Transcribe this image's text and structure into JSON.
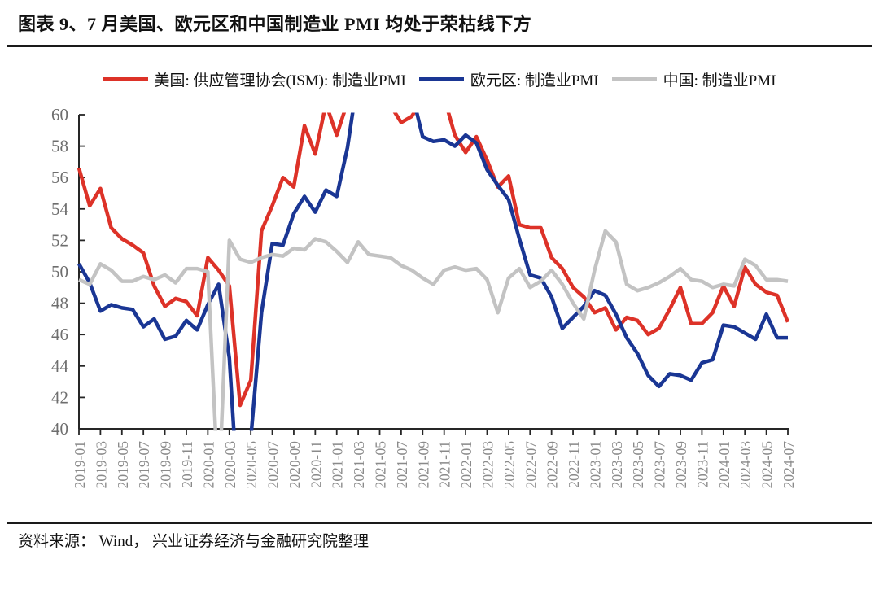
{
  "header": {
    "title": "图表 9、7 月美国、欧元区和中国制造业 PMI 均处于荣枯线下方"
  },
  "footer": {
    "source": "资料来源： Wind， 兴业证券经济与金融研究院整理"
  },
  "chart_data": {
    "type": "line",
    "title": "7 月美国、欧元区和中国制造业 PMI 均处于荣枯线下方",
    "legend_position": "top",
    "grid": false,
    "ylim": [
      40,
      60
    ],
    "ytick_step": 2,
    "x_tick_step": 2,
    "axis_color": "#262626",
    "y_tick_label_color": "#6e6e6e",
    "x_tick_label_color": "#8a8a8a",
    "x": [
      "2019-01",
      "2019-02",
      "2019-03",
      "2019-04",
      "2019-05",
      "2019-06",
      "2019-07",
      "2019-08",
      "2019-09",
      "2019-10",
      "2019-11",
      "2019-12",
      "2020-01",
      "2020-02",
      "2020-03",
      "2020-04",
      "2020-05",
      "2020-06",
      "2020-07",
      "2020-08",
      "2020-09",
      "2020-10",
      "2020-11",
      "2020-12",
      "2021-01",
      "2021-02",
      "2021-03",
      "2021-04",
      "2021-05",
      "2021-06",
      "2021-07",
      "2021-08",
      "2021-09",
      "2021-10",
      "2021-11",
      "2021-12",
      "2022-01",
      "2022-02",
      "2022-03",
      "2022-04",
      "2022-05",
      "2022-06",
      "2022-07",
      "2022-08",
      "2022-09",
      "2022-10",
      "2022-11",
      "2022-12",
      "2023-01",
      "2023-02",
      "2023-03",
      "2023-04",
      "2023-05",
      "2023-06",
      "2023-07",
      "2023-08",
      "2023-09",
      "2023-10",
      "2023-11",
      "2023-12",
      "2024-01",
      "2024-02",
      "2024-03",
      "2024-04",
      "2024-05",
      "2024-06",
      "2024-07"
    ],
    "series": [
      {
        "id": "us",
        "name": "美国: 供应管理协会(ISM): 制造业PMI",
        "color": "#dd3228",
        "values": [
          56.6,
          54.2,
          55.3,
          52.8,
          52.1,
          51.7,
          51.2,
          49.1,
          47.8,
          48.3,
          48.1,
          47.2,
          50.9,
          50.1,
          49.1,
          41.5,
          43.1,
          52.6,
          54.2,
          56.0,
          55.4,
          59.3,
          57.5,
          60.7,
          58.7,
          60.8,
          64.7,
          60.7,
          61.2,
          60.6,
          59.5,
          59.9,
          61.1,
          60.8,
          61.1,
          58.7,
          57.6,
          58.6,
          57.1,
          55.4,
          56.1,
          53.0,
          52.8,
          52.8,
          50.9,
          50.2,
          49.0,
          48.4,
          47.4,
          47.7,
          46.3,
          47.1,
          46.9,
          46.0,
          46.4,
          47.6,
          49.0,
          46.7,
          46.7,
          47.4,
          49.1,
          47.8,
          50.3,
          49.2,
          48.7,
          48.5,
          46.8
        ]
      },
      {
        "id": "eurozone",
        "name": "欧元区: 制造业PMI",
        "color": "#1a3694",
        "values": [
          50.5,
          49.3,
          47.5,
          47.9,
          47.7,
          47.6,
          46.5,
          47.0,
          45.7,
          45.9,
          46.9,
          46.3,
          47.9,
          49.2,
          44.5,
          33.4,
          39.4,
          47.4,
          51.8,
          51.7,
          53.7,
          54.8,
          53.8,
          55.2,
          54.8,
          57.9,
          62.5,
          62.9,
          63.1,
          63.4,
          62.8,
          61.4,
          58.6,
          58.3,
          58.4,
          58.0,
          58.7,
          58.2,
          56.5,
          55.5,
          54.6,
          52.1,
          49.8,
          49.6,
          48.4,
          46.4,
          47.1,
          47.8,
          48.8,
          48.5,
          47.3,
          45.8,
          44.8,
          43.4,
          42.7,
          43.5,
          43.4,
          43.1,
          44.2,
          44.4,
          46.6,
          46.5,
          46.1,
          45.7,
          47.3,
          45.8,
          45.8
        ]
      },
      {
        "id": "china",
        "name": "中国: 制造业PMI",
        "color": "#c3c3c3",
        "values": [
          49.5,
          49.2,
          50.5,
          50.1,
          49.4,
          49.4,
          49.7,
          49.5,
          49.8,
          49.3,
          50.2,
          50.2,
          50.0,
          35.7,
          52.0,
          50.8,
          50.6,
          50.9,
          51.1,
          51.0,
          51.5,
          51.4,
          52.1,
          51.9,
          51.3,
          50.6,
          51.9,
          51.1,
          51.0,
          50.9,
          50.4,
          50.1,
          49.6,
          49.2,
          50.1,
          50.3,
          50.1,
          50.2,
          49.5,
          47.4,
          49.6,
          50.2,
          49.0,
          49.4,
          50.1,
          49.2,
          48.0,
          47.0,
          50.1,
          52.6,
          51.9,
          49.2,
          48.8,
          49.0,
          49.3,
          49.7,
          50.2,
          49.5,
          49.4,
          49.0,
          49.2,
          49.1,
          50.8,
          50.4,
          49.5,
          49.5,
          49.4
        ]
      }
    ]
  }
}
